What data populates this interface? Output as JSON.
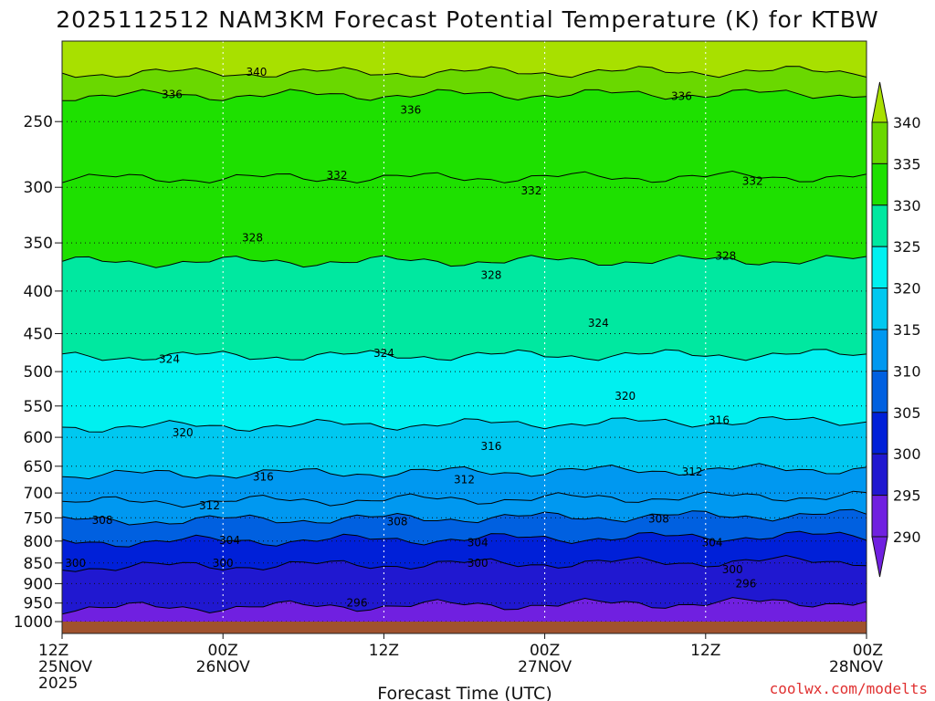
{
  "chart_data": {
    "type": "contour",
    "title": "2025112512 NAM3KM Forecast Potential Temperature (K) for KTBW",
    "xlabel": "Forecast Time (UTC)",
    "credit": "coolwx.com/modelts",
    "x_ticks": [
      {
        "hour": 0,
        "lines": [
          "12Z",
          "25NOV",
          "2025"
        ]
      },
      {
        "hour": 12,
        "lines": [
          "00Z",
          "26NOV"
        ]
      },
      {
        "hour": 24,
        "lines": [
          "12Z"
        ]
      },
      {
        "hour": 36,
        "lines": [
          "00Z",
          "27NOV"
        ]
      },
      {
        "hour": 48,
        "lines": [
          "12Z"
        ]
      },
      {
        "hour": 60,
        "lines": [
          "00Z",
          "28NOV"
        ]
      }
    ],
    "xlim": [
      0,
      60
    ],
    "y_scale": "log-pressure",
    "y_ticks": [
      250,
      300,
      350,
      400,
      450,
      500,
      550,
      600,
      650,
      700,
      750,
      800,
      850,
      900,
      950,
      1000
    ],
    "ylim": [
      1000,
      200
    ],
    "colorbar": {
      "values": [
        340,
        335,
        330,
        325,
        320,
        315,
        310,
        305,
        300,
        295,
        290
      ],
      "colors": [
        "#a8e000",
        "#6ad800",
        "#1ee000",
        "#00e8a0",
        "#00f0f0",
        "#00c8f0",
        "#0098f0",
        "#0060e0",
        "#0020d8",
        "#2018d0",
        "#7020e0"
      ]
    },
    "contours": [
      {
        "value": 340,
        "pressure": 218
      },
      {
        "value": 336,
        "pressure": 232
      },
      {
        "value": 332,
        "pressure": 292
      },
      {
        "value": 328,
        "pressure": 368
      },
      {
        "value": 324,
        "pressure": 478
      },
      {
        "value": 320,
        "pressure": 578
      },
      {
        "value": 316,
        "pressure": 660
      },
      {
        "value": 312,
        "pressure": 712
      },
      {
        "value": 308,
        "pressure": 750
      },
      {
        "value": 304,
        "pressure": 795
      },
      {
        "value": 300,
        "pressure": 852
      },
      {
        "value": 296,
        "pressure": 955
      }
    ],
    "contour_labels": [
      {
        "text": "340",
        "hour": 14.5,
        "pressure": 218
      },
      {
        "text": "336",
        "hour": 8.2,
        "pressure": 232
      },
      {
        "text": "336",
        "hour": 26.0,
        "pressure": 242
      },
      {
        "text": "336",
        "hour": 46.2,
        "pressure": 233
      },
      {
        "text": "332",
        "hour": 20.5,
        "pressure": 290
      },
      {
        "text": "332",
        "hour": 35.0,
        "pressure": 303
      },
      {
        "text": "332",
        "hour": 51.5,
        "pressure": 295
      },
      {
        "text": "328",
        "hour": 14.2,
        "pressure": 345
      },
      {
        "text": "328",
        "hour": 32.0,
        "pressure": 383
      },
      {
        "text": "328",
        "hour": 49.5,
        "pressure": 363
      },
      {
        "text": "324",
        "hour": 40.0,
        "pressure": 437
      },
      {
        "text": "324",
        "hour": 8.0,
        "pressure": 483
      },
      {
        "text": "324",
        "hour": 24.0,
        "pressure": 475
      },
      {
        "text": "320",
        "hour": 42.0,
        "pressure": 535
      },
      {
        "text": "320",
        "hour": 9.0,
        "pressure": 592
      },
      {
        "text": "316",
        "hour": 49.0,
        "pressure": 572
      },
      {
        "text": "316",
        "hour": 32.0,
        "pressure": 615
      },
      {
        "text": "316",
        "hour": 15.0,
        "pressure": 670
      },
      {
        "text": "312",
        "hour": 30.0,
        "pressure": 675
      },
      {
        "text": "312",
        "hour": 47.0,
        "pressure": 660
      },
      {
        "text": "312",
        "hour": 11.0,
        "pressure": 725
      },
      {
        "text": "308",
        "hour": 3.0,
        "pressure": 755
      },
      {
        "text": "308",
        "hour": 25.0,
        "pressure": 758
      },
      {
        "text": "308",
        "hour": 44.5,
        "pressure": 752
      },
      {
        "text": "304",
        "hour": 12.5,
        "pressure": 798
      },
      {
        "text": "304",
        "hour": 31.0,
        "pressure": 803
      },
      {
        "text": "304",
        "hour": 48.5,
        "pressure": 803
      },
      {
        "text": "300",
        "hour": 1.0,
        "pressure": 851
      },
      {
        "text": "300",
        "hour": 12.0,
        "pressure": 850
      },
      {
        "text": "300",
        "hour": 31.0,
        "pressure": 851
      },
      {
        "text": "300",
        "hour": 50.0,
        "pressure": 866
      },
      {
        "text": "296",
        "hour": 22.0,
        "pressure": 949
      },
      {
        "text": "296",
        "hour": 51.0,
        "pressure": 900
      }
    ]
  }
}
